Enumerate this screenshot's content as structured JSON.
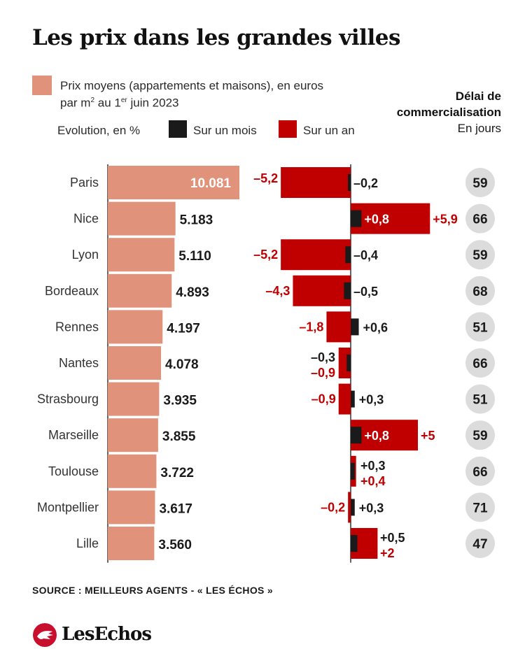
{
  "title": "Les prix dans les grandes villes",
  "legend": {
    "price_line1": "Prix moyens (appartements et maisons), en euros",
    "price_line2_pre": "par m",
    "price_line2_sup1": "2",
    "price_line2_mid": " au 1",
    "price_line2_sup2": "er",
    "price_line2_post": " juin 2023",
    "evolution": "Evolution, en %",
    "month": "Sur un mois",
    "year": "Sur un an"
  },
  "delai": {
    "line1": "Délai de",
    "line2": "commercialisation",
    "unit": "En jours"
  },
  "source": "SOURCE : MEILLEURS AGENTS - « LES ÉCHOS »",
  "logo": "LesEchos",
  "colors": {
    "price": "#e0927a",
    "year": "#c00000",
    "month": "#1a1a1a",
    "circle": "#dcdcdc",
    "text": "#1a1a1a"
  },
  "chart_data": {
    "type": "bar",
    "categories": [
      "Paris",
      "Nice",
      "Lyon",
      "Bordeaux",
      "Rennes",
      "Nantes",
      "Strasbourg",
      "Marseille",
      "Toulouse",
      "Montpellier",
      "Lille"
    ],
    "series": [
      {
        "name": "Prix moyens (appartements et maisons), en euros par m² au 1er juin 2023",
        "values": [
          10081,
          5183,
          5110,
          4893,
          4197,
          4078,
          3935,
          3855,
          3722,
          3617,
          3560
        ],
        "labels": [
          "10.081",
          "5.183",
          "5.110",
          "4.893",
          "4.197",
          "4.078",
          "3.935",
          "3.855",
          "3.722",
          "3.617",
          "3.560"
        ]
      },
      {
        "name": "Sur un an",
        "values": [
          -5.2,
          5.9,
          -5.2,
          -4.3,
          -1.8,
          -0.9,
          -0.9,
          5,
          0.4,
          -0.2,
          2
        ],
        "labels": [
          "–5,2",
          "+5,9",
          "–5,2",
          "–4,3",
          "–1,8",
          "–0,9",
          "–0,9",
          "+5",
          "+0,4",
          "–0,2",
          "+2"
        ]
      },
      {
        "name": "Sur un mois",
        "values": [
          -0.2,
          0.8,
          -0.4,
          -0.5,
          0.6,
          -0.3,
          0.3,
          0.8,
          0.3,
          0.3,
          0.5
        ],
        "labels": [
          "–0,2",
          "+0,8",
          "–0,4",
          "–0,5",
          "+0,6",
          "–0,3",
          "+0,3",
          "+0,8",
          "+0,3",
          "+0,3",
          "+0,5"
        ]
      },
      {
        "name": "Délai de commercialisation",
        "values": [
          59,
          66,
          59,
          68,
          51,
          66,
          51,
          59,
          66,
          71,
          47
        ]
      }
    ]
  }
}
